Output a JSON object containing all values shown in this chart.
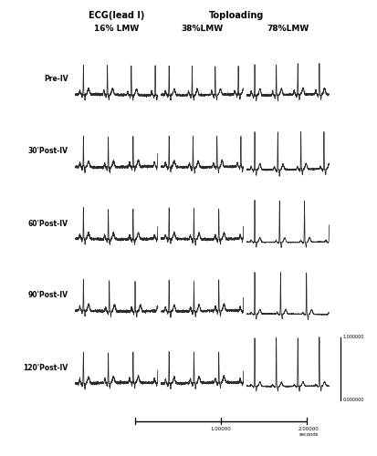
{
  "title_left": "ECG(lead I)",
  "title_right": "Toploading",
  "col_labels": [
    "16% LMW",
    "38%LMW",
    "78%LMW"
  ],
  "row_labels": [
    "Pre-IV",
    "30'Post-IV",
    "60'Post-IV",
    "90'Post-IV",
    "120'Post-IV"
  ],
  "background_color": "#ffffff",
  "line_color": "#2a2a2a",
  "scale_bar_y_label": "1.000000",
  "scale_bar_y_label2": "0.000000",
  "scale_bar_x1": "1.00000",
  "scale_bar_x2": "2.00000",
  "scale_bar_x_unit": "seconds",
  "fig_width": 4.14,
  "fig_height": 5.0,
  "dpi": 100
}
